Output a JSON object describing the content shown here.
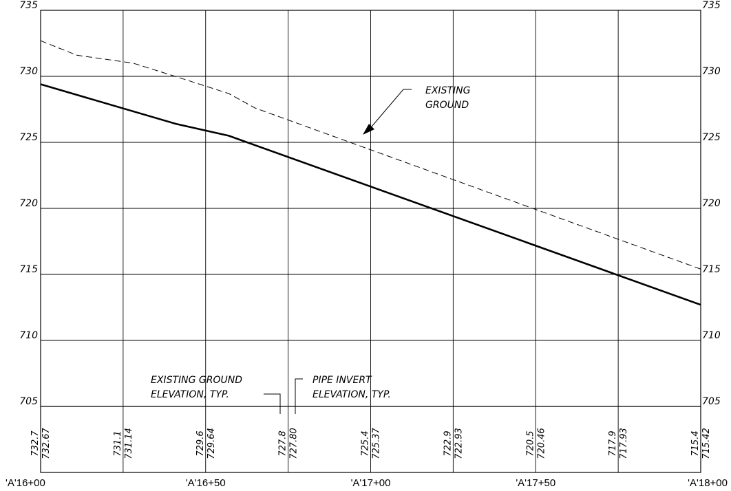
{
  "chart_data": {
    "type": "line",
    "title": "",
    "ylim": [
      705,
      735
    ],
    "y_ticks": [
      "735",
      "730",
      "725",
      "720",
      "715",
      "710",
      "705"
    ],
    "x_categories": [
      "'A'16+00",
      "'A'16+50",
      "'A'17+00",
      "'A'17+50",
      "'A'18+00"
    ],
    "stations_ft": [
      1600,
      1625,
      1650,
      1675,
      1700,
      1725,
      1750,
      1775,
      1800
    ],
    "series": [
      {
        "name": "EXISTING GROUND",
        "style": "dashed",
        "points": [
          {
            "x": 1600,
            "y": 732.7
          },
          {
            "x": 1611,
            "y": 731.6
          },
          {
            "x": 1628,
            "y": 731.0
          },
          {
            "x": 1642,
            "y": 729.9
          },
          {
            "x": 1657,
            "y": 728.7
          },
          {
            "x": 1665,
            "y": 727.6
          },
          {
            "x": 1800,
            "y": 715.4
          }
        ]
      },
      {
        "name": "PIPE INVERT",
        "style": "solid",
        "points": [
          {
            "x": 1600,
            "y": 729.4
          },
          {
            "x": 1641,
            "y": 726.4
          },
          {
            "x": 1657,
            "y": 725.5
          },
          {
            "x": 1800,
            "y": 712.7
          }
        ]
      }
    ],
    "elevation_labels": [
      {
        "ground": "732.7",
        "invert": "732.67"
      },
      {
        "ground": "731.1",
        "invert": "731.14"
      },
      {
        "ground": "729.6",
        "invert": "729.64"
      },
      {
        "ground": "727.8",
        "invert": "727.80"
      },
      {
        "ground": "725.4",
        "invert": "725.37"
      },
      {
        "ground": "722.9",
        "invert": "722.93"
      },
      {
        "ground": "720.5",
        "invert": "720.46"
      },
      {
        "ground": "717.9",
        "invert": "717.93"
      },
      {
        "ground": "715.4",
        "invert": "715.42"
      }
    ],
    "annotations": {
      "existing_ground": [
        "EXISTING",
        "GROUND"
      ],
      "ground_elevation_note": [
        "EXISTING GROUND",
        "ELEVATION, TYP."
      ],
      "pipe_invert_note": [
        "PIPE INVERT",
        "ELEVATION, TYP."
      ]
    },
    "grid": true
  }
}
